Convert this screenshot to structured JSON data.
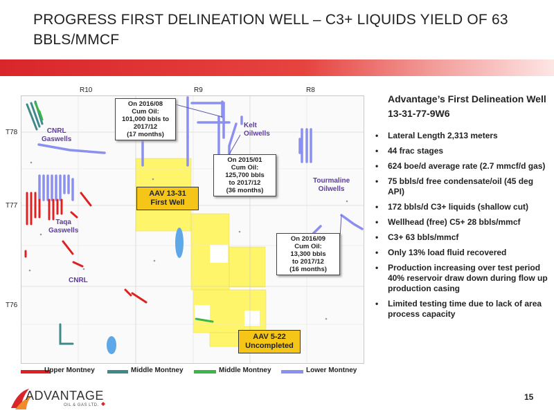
{
  "slide": {
    "title": "PROGRESS FIRST DELINEATION WELL – C3+ LIQUIDS YIELD OF 63 BBLS/MMCF",
    "page_number": "15"
  },
  "map": {
    "ranges": [
      "R10",
      "R9",
      "R8"
    ],
    "townships": [
      "T78",
      "T77",
      "T76"
    ],
    "labels": {
      "cnrl_gas": "CNRL\nGaswells",
      "taqa_gas": "Taqa\nGaswells",
      "cnrl": "CNRL",
      "kelt_oil": "Kelt\nOilwells",
      "tourmaline_oil": "Tourmaline\nOilwells"
    },
    "callouts": {
      "c1": "On 2016/08\nCum Oil:\n101,000 bbls to\n2017/12\n(17 months)",
      "c2": "On 2015/01\nCum Oil:\n125,700 bbls\nto 2017/12\n(36 months)",
      "c3": "On 2016/09\nCum Oil:\n13,300 bbls\nto 2017/12\n(16 months)"
    },
    "wells": {
      "aav_13_31": "AAV 13-31\nFirst Well",
      "aav_5_22": "AAV 5-22\nUncompleted"
    },
    "colors": {
      "upper_montney": "#e02020",
      "middle_montney_teal": "#3e8a8a",
      "middle_montney_green": "#3bb54a",
      "lower_montney": "#8a8ff0",
      "land": "#fff56a",
      "water": "#5fa8e8",
      "label_purple": "#5d3aa0"
    }
  },
  "legend": [
    {
      "label": "Upper Montney",
      "color": "#e02020"
    },
    {
      "label": "Middle Montney",
      "color": "#3e8a8a"
    },
    {
      "label": "Middle Montney",
      "color": "#3bb54a"
    },
    {
      "label": "Lower Montney",
      "color": "#8a8ff0"
    }
  ],
  "sidebar": {
    "heading": "Advantage’s First Delineation Well 13-31-77-9W6",
    "bullets": [
      "Lateral Length 2,313 meters",
      "44 frac stages",
      "624 boe/d average rate (2.7 mmcf/d gas)",
      "75 bbls/d free condensate/oil (45 deg API)",
      "172  bbls/d C3+ liquids (shallow cut)",
      "Wellhead (free) C5+ 28 bbls/mmcf",
      "C3+ 63 bbls/mmcf",
      "Only 13% load fluid recovered",
      "Production increasing over test period 40% reservoir draw down during flow up production casing",
      "Limited testing time due to lack of area process capacity"
    ]
  },
  "logo": {
    "word": "ADVANTAGE",
    "sub": "OIL & GAS LTD."
  }
}
